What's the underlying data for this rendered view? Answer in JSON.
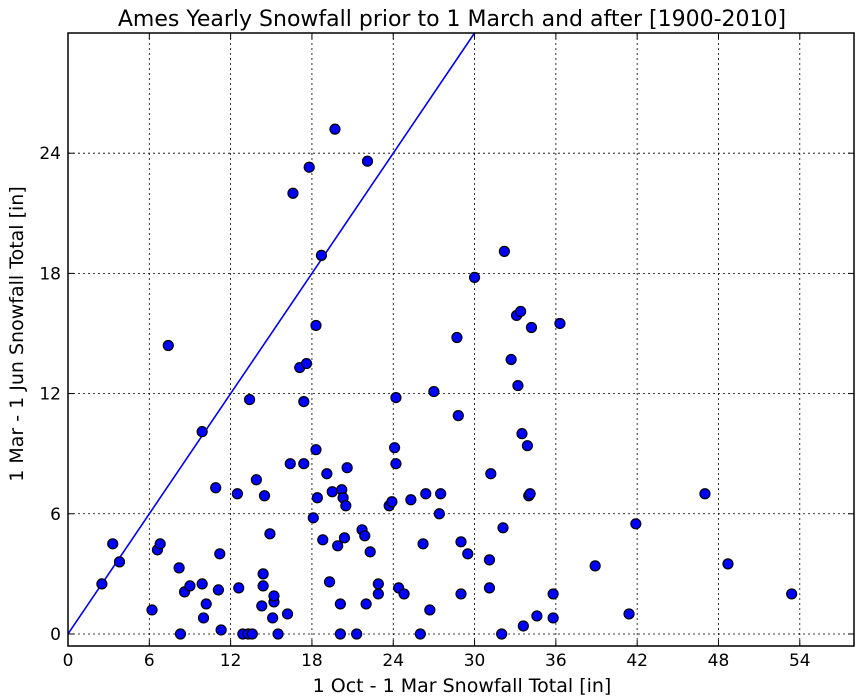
{
  "chart_data": {
    "type": "scatter",
    "title": "Ames Yearly Snowfall prior to 1 March and after [1900-2010]",
    "xlabel": "1 Oct - 1 Mar Snowfall Total [in]",
    "ylabel": "1 Mar - 1 Jun Snowfall Total [in]",
    "xlim": [
      0,
      58
    ],
    "ylim": [
      -0.6,
      30
    ],
    "xticks": [
      0,
      6,
      12,
      18,
      24,
      30,
      36,
      42,
      48,
      54
    ],
    "yticks": [
      0,
      6,
      12,
      18,
      24
    ],
    "grid": true,
    "marker_color": "#0000ff",
    "marker_edge_color": "#000000",
    "reference_line": {
      "color": "#0000ff",
      "x": [
        0,
        30
      ],
      "y": [
        0,
        30
      ]
    },
    "points": [
      {
        "x": 2.5,
        "y": 2.5
      },
      {
        "x": 3.3,
        "y": 4.5
      },
      {
        "x": 3.8,
        "y": 3.6
      },
      {
        "x": 6.2,
        "y": 1.2
      },
      {
        "x": 6.6,
        "y": 4.2
      },
      {
        "x": 6.8,
        "y": 4.5
      },
      {
        "x": 7.4,
        "y": 14.4
      },
      {
        "x": 8.2,
        "y": 3.3
      },
      {
        "x": 8.3,
        "y": 0.0
      },
      {
        "x": 8.6,
        "y": 2.1
      },
      {
        "x": 9.0,
        "y": 2.4
      },
      {
        "x": 9.9,
        "y": 2.5
      },
      {
        "x": 10.0,
        "y": 0.8
      },
      {
        "x": 10.2,
        "y": 1.5
      },
      {
        "x": 9.9,
        "y": 10.1
      },
      {
        "x": 10.9,
        "y": 7.3
      },
      {
        "x": 11.1,
        "y": 2.2
      },
      {
        "x": 11.2,
        "y": 4.0
      },
      {
        "x": 11.3,
        "y": 0.2
      },
      {
        "x": 12.5,
        "y": 7.0
      },
      {
        "x": 12.6,
        "y": 2.3
      },
      {
        "x": 12.9,
        "y": 0.0
      },
      {
        "x": 13.3,
        "y": 0.0
      },
      {
        "x": 13.6,
        "y": 0.0
      },
      {
        "x": 13.4,
        "y": 11.7
      },
      {
        "x": 13.9,
        "y": 7.7
      },
      {
        "x": 14.3,
        "y": 1.4
      },
      {
        "x": 14.4,
        "y": 2.4
      },
      {
        "x": 14.4,
        "y": 3.0
      },
      {
        "x": 14.5,
        "y": 6.9
      },
      {
        "x": 14.9,
        "y": 5.0
      },
      {
        "x": 15.1,
        "y": 0.8
      },
      {
        "x": 15.2,
        "y": 1.6
      },
      {
        "x": 15.2,
        "y": 1.9
      },
      {
        "x": 15.5,
        "y": 0.0
      },
      {
        "x": 16.2,
        "y": 1.0
      },
      {
        "x": 16.4,
        "y": 8.5
      },
      {
        "x": 16.6,
        "y": 22.0
      },
      {
        "x": 17.1,
        "y": 13.3
      },
      {
        "x": 17.4,
        "y": 11.6
      },
      {
        "x": 17.4,
        "y": 8.5
      },
      {
        "x": 17.6,
        "y": 13.5
      },
      {
        "x": 17.8,
        "y": 23.3
      },
      {
        "x": 18.1,
        "y": 5.8
      },
      {
        "x": 18.3,
        "y": 15.4
      },
      {
        "x": 18.3,
        "y": 9.2
      },
      {
        "x": 18.4,
        "y": 6.8
      },
      {
        "x": 18.7,
        "y": 18.9
      },
      {
        "x": 18.8,
        "y": 4.7
      },
      {
        "x": 19.1,
        "y": 8.0
      },
      {
        "x": 19.3,
        "y": 2.6
      },
      {
        "x": 19.5,
        "y": 7.1
      },
      {
        "x": 19.7,
        "y": 25.2
      },
      {
        "x": 19.9,
        "y": 4.4
      },
      {
        "x": 20.1,
        "y": 1.5
      },
      {
        "x": 20.1,
        "y": 0.0
      },
      {
        "x": 20.2,
        "y": 7.2
      },
      {
        "x": 20.3,
        "y": 6.8
      },
      {
        "x": 20.4,
        "y": 4.8
      },
      {
        "x": 20.5,
        "y": 6.4
      },
      {
        "x": 20.6,
        "y": 8.3
      },
      {
        "x": 21.3,
        "y": 0.0
      },
      {
        "x": 21.7,
        "y": 5.2
      },
      {
        "x": 21.9,
        "y": 4.9
      },
      {
        "x": 22.0,
        "y": 1.5
      },
      {
        "x": 22.1,
        "y": 23.6
      },
      {
        "x": 22.3,
        "y": 4.1
      },
      {
        "x": 22.9,
        "y": 2.5
      },
      {
        "x": 22.9,
        "y": 2.0
      },
      {
        "x": 23.7,
        "y": 6.4
      },
      {
        "x": 23.9,
        "y": 6.6
      },
      {
        "x": 24.1,
        "y": 9.3
      },
      {
        "x": 24.2,
        "y": 8.5
      },
      {
        "x": 24.2,
        "y": 11.8
      },
      {
        "x": 24.4,
        "y": 2.3
      },
      {
        "x": 24.8,
        "y": 2.0
      },
      {
        "x": 25.3,
        "y": 6.7
      },
      {
        "x": 26.0,
        "y": 0.0
      },
      {
        "x": 26.2,
        "y": 4.5
      },
      {
        "x": 26.4,
        "y": 7.0
      },
      {
        "x": 26.7,
        "y": 1.2
      },
      {
        "x": 27.0,
        "y": 12.1
      },
      {
        "x": 27.4,
        "y": 6.0
      },
      {
        "x": 27.5,
        "y": 7.0
      },
      {
        "x": 28.7,
        "y": 14.8
      },
      {
        "x": 28.8,
        "y": 10.9
      },
      {
        "x": 29.0,
        "y": 2.0
      },
      {
        "x": 29.0,
        "y": 4.6
      },
      {
        "x": 29.5,
        "y": 4.0
      },
      {
        "x": 30.0,
        "y": 17.8
      },
      {
        "x": 31.1,
        "y": 3.7
      },
      {
        "x": 31.1,
        "y": 2.3
      },
      {
        "x": 31.2,
        "y": 8.0
      },
      {
        "x": 32.0,
        "y": 0.0
      },
      {
        "x": 32.1,
        "y": 5.3
      },
      {
        "x": 32.2,
        "y": 19.1
      },
      {
        "x": 32.7,
        "y": 13.7
      },
      {
        "x": 33.1,
        "y": 15.9
      },
      {
        "x": 33.2,
        "y": 12.4
      },
      {
        "x": 33.4,
        "y": 16.1
      },
      {
        "x": 33.5,
        "y": 10.0
      },
      {
        "x": 33.6,
        "y": 0.4
      },
      {
        "x": 33.9,
        "y": 9.4
      },
      {
        "x": 34.0,
        "y": 6.9
      },
      {
        "x": 34.1,
        "y": 7.0
      },
      {
        "x": 34.2,
        "y": 15.3
      },
      {
        "x": 34.6,
        "y": 0.9
      },
      {
        "x": 35.8,
        "y": 2.0
      },
      {
        "x": 35.8,
        "y": 0.8
      },
      {
        "x": 36.3,
        "y": 15.5
      },
      {
        "x": 38.9,
        "y": 3.4
      },
      {
        "x": 41.4,
        "y": 1.0
      },
      {
        "x": 41.9,
        "y": 5.5
      },
      {
        "x": 47.0,
        "y": 7.0
      },
      {
        "x": 48.7,
        "y": 3.5
      },
      {
        "x": 53.4,
        "y": 2.0
      }
    ]
  }
}
